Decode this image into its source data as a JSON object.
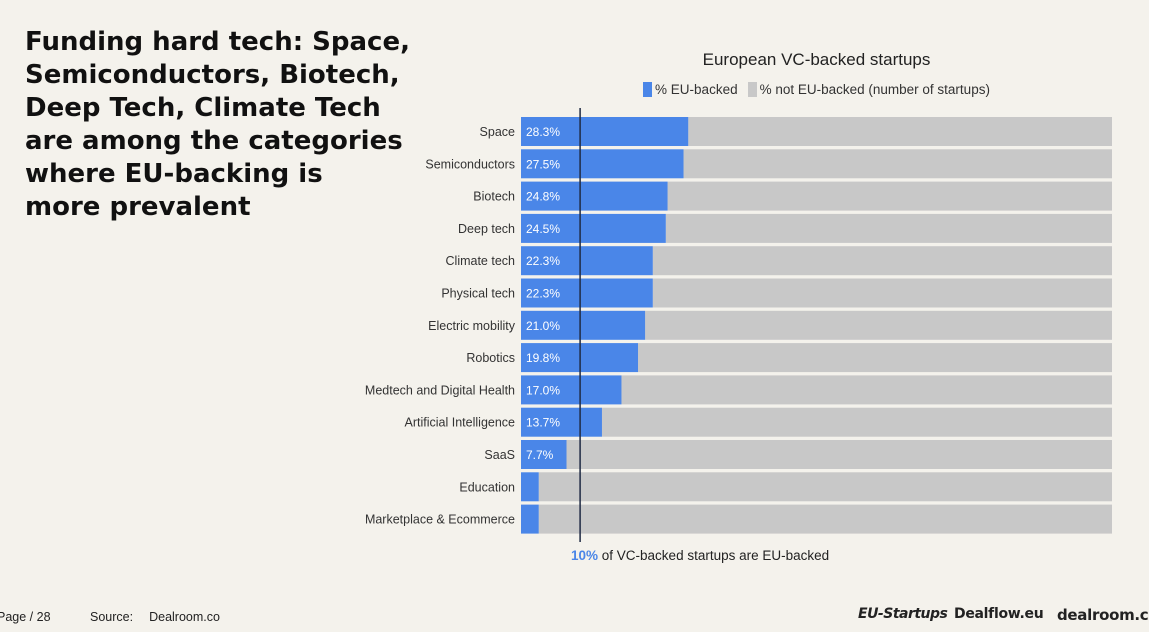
{
  "headline": [
    "Funding hard tech: Space,",
    "Semiconductors, Biotech,",
    "Deep Tech, Climate Tech",
    "are among the categories",
    "where EU-backing is",
    "more prevalent"
  ],
  "colors": {
    "eu_backed": "#4a86e8",
    "not_eu_backed": "#c8c8c8",
    "reference_line": "#1f2a44",
    "background": "#f4f2ec"
  },
  "chart_data": {
    "type": "bar",
    "orientation": "horizontal",
    "stacked": true,
    "title": "European VC-backed startups",
    "legend_placement": "top",
    "legend": [
      "% EU-backed",
      "% not EU-backed (number of startups)"
    ],
    "categories": [
      "Space",
      "Semiconductors",
      "Biotech",
      "Deep tech",
      "Climate tech",
      "Physical tech",
      "Electric mobility",
      "Robotics",
      "Medtech and Digital Health",
      "Artificial Intelligence",
      "SaaS",
      "Education",
      "Marketplace & Ecommerce"
    ],
    "series": [
      {
        "name": "% EU-backed",
        "values": [
          28.3,
          27.5,
          24.8,
          24.5,
          22.3,
          22.3,
          21.0,
          19.8,
          17.0,
          13.7,
          7.7,
          3.0,
          3.0
        ],
        "data_labels": [
          "28.3%",
          "27.5%",
          "24.8%",
          "24.5%",
          "22.3%",
          "22.3%",
          "21.0%",
          "19.8%",
          "17.0%",
          "13.7%",
          "7.7%",
          "",
          ""
        ]
      },
      {
        "name": "% not EU-backed (number of startups)",
        "values": [
          71.7,
          72.5,
          75.2,
          75.5,
          77.7,
          77.7,
          79.0,
          80.2,
          83.0,
          86.3,
          92.3,
          97.0,
          97.0
        ]
      }
    ],
    "xlim": [
      0,
      100
    ],
    "reference_line": {
      "value": 10
    },
    "grid": false
  },
  "footnote": {
    "accent": "10%",
    "text": " of VC-backed startups are EU-backed"
  },
  "footer": {
    "page": "Page / 28",
    "source_label": "Source:",
    "source_value": "Dealroom.co"
  },
  "logos": {
    "eu_startups": "EU-Startups",
    "dealflow": "Dealflow.eu",
    "dealroom": "dealroom.co"
  }
}
